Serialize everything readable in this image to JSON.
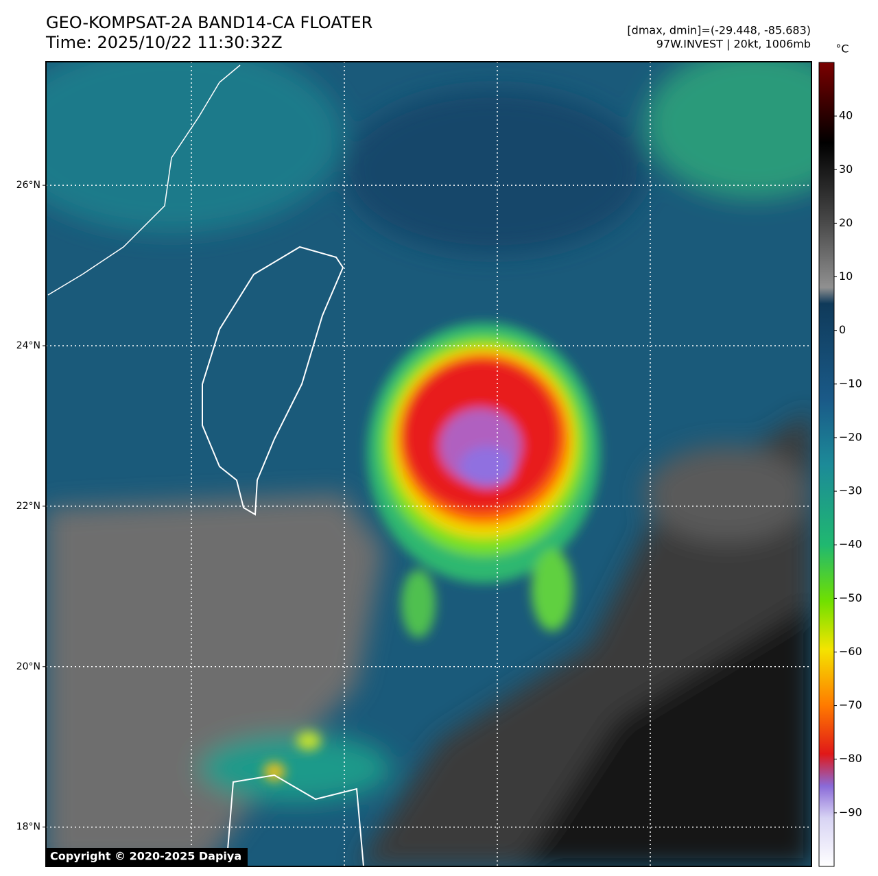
{
  "header": {
    "title": "GEO-KOMPSAT-2A BAND14-CA FLOATER",
    "time": "Time: 2025/10/22 11:30:32Z",
    "range_info": "[dmax, dmin]=(-29.448, -85.683)",
    "storm_info": "97W.INVEST | 20kt, 1006mb"
  },
  "map": {
    "ylim": [
      17.51,
      27.54
    ],
    "yticks": [
      {
        "value": 18,
        "label": "18°N"
      },
      {
        "value": 20,
        "label": "20°N"
      },
      {
        "value": 22,
        "label": "22°N"
      },
      {
        "value": 24,
        "label": "24°N"
      },
      {
        "value": 26,
        "label": "26°N"
      }
    ],
    "grid": true
  },
  "colorbar": {
    "unit": "°C",
    "clim": [
      -100,
      50
    ],
    "ticks": [
      {
        "value": -90,
        "label": "−90"
      },
      {
        "value": -80,
        "label": "−80"
      },
      {
        "value": -70,
        "label": "−70"
      },
      {
        "value": -60,
        "label": "−60"
      },
      {
        "value": -50,
        "label": "−50"
      },
      {
        "value": -40,
        "label": "−40"
      },
      {
        "value": -30,
        "label": "−30"
      },
      {
        "value": -20,
        "label": "−20"
      },
      {
        "value": -10,
        "label": "−10"
      },
      0,
      10,
      20,
      30,
      40
    ]
  },
  "copyright": "Copyright © 2020-2025 Dapiya"
}
